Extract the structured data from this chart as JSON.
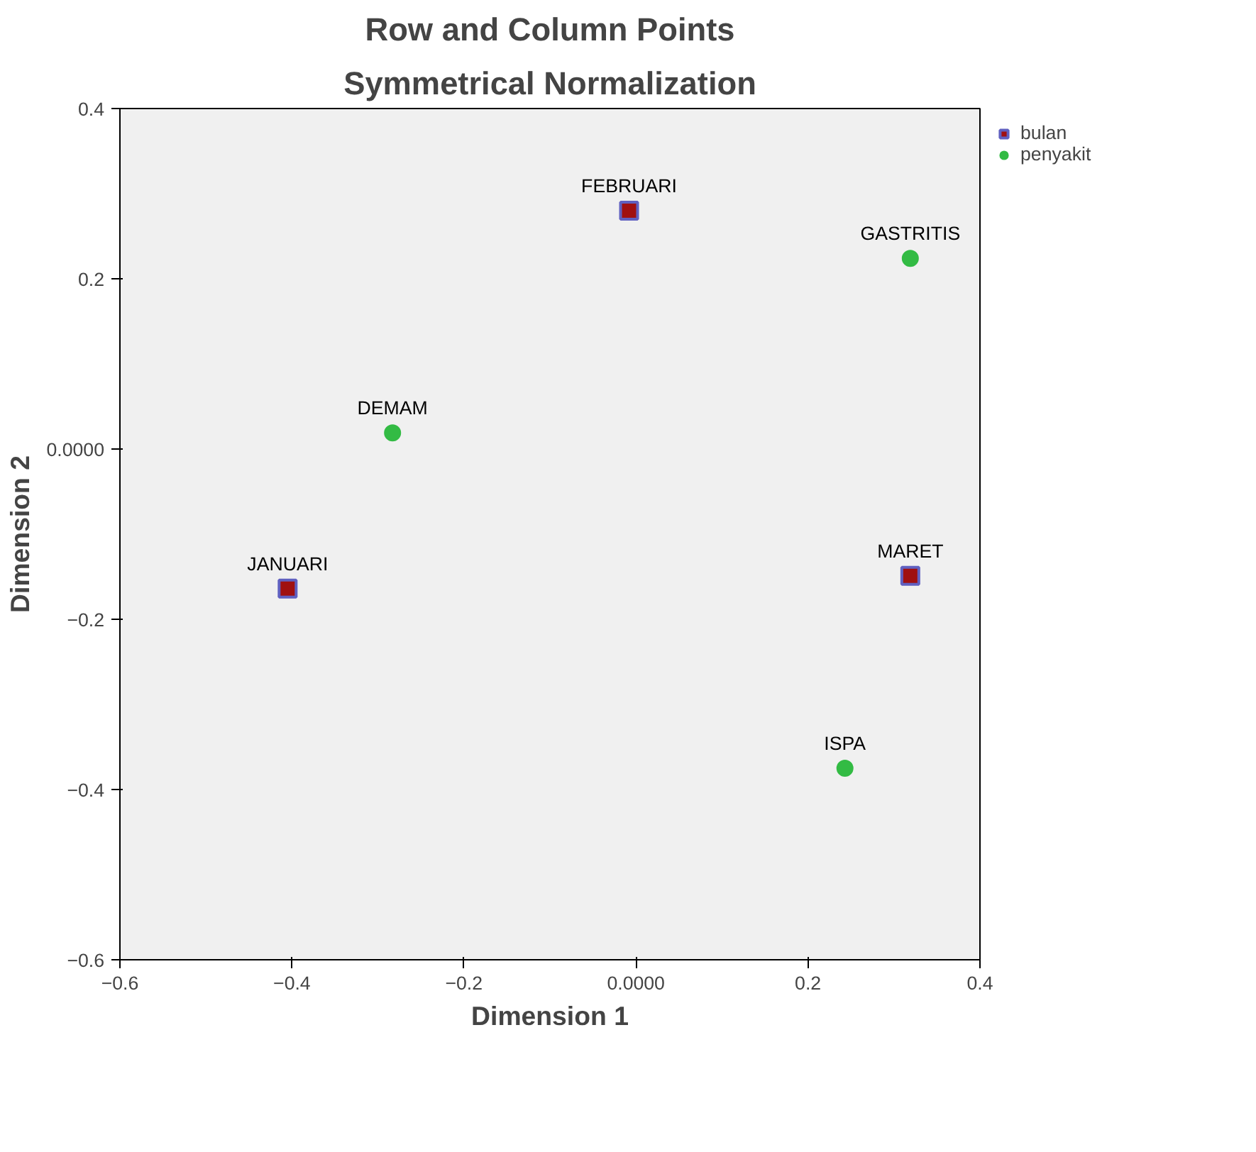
{
  "chart_data": {
    "type": "scatter",
    "title": "Row and Column Points",
    "subtitle": "Symmetrical Normalization",
    "xlabel": "Dimension 1",
    "ylabel": "Dimension 2",
    "xlim": [
      -0.6,
      0.4
    ],
    "ylim": [
      -0.6,
      0.4
    ],
    "xticks": [
      -0.6,
      -0.4,
      -0.2,
      {
        "value": 0,
        "label": "0.0000"
      },
      0.2,
      0.4
    ],
    "yticks": [
      -0.6,
      -0.4,
      -0.2,
      {
        "value": 0,
        "label": "0.0000"
      },
      0.2,
      0.4
    ],
    "grid": false,
    "legend": "top right",
    "series": [
      {
        "name": "bulan",
        "color": "#a01010",
        "marker": "square",
        "x": [
          -0.405,
          -0.008,
          0.319
        ],
        "values": [
          -0.164,
          0.28,
          -0.149
        ]
      },
      {
        "name": "penyakit",
        "color": "#33bb44",
        "marker": "circle",
        "x": [
          -0.283,
          0.319,
          0.243
        ],
        "values": [
          0.019,
          0.224,
          -0.375
        ]
      }
    ],
    "annotations": [
      {
        "text": "JANUARI",
        "x": -0.405,
        "y": -0.164
      },
      {
        "text": "FEBRUARI",
        "x": -0.008,
        "y": 0.28
      },
      {
        "text": "MARET",
        "x": 0.319,
        "y": -0.149
      },
      {
        "text": "DEMAM",
        "x": -0.283,
        "y": 0.019
      },
      {
        "text": "GASTRITIS",
        "x": 0.319,
        "y": 0.224
      },
      {
        "text": "ISPA",
        "x": 0.243,
        "y": -0.375
      }
    ]
  }
}
